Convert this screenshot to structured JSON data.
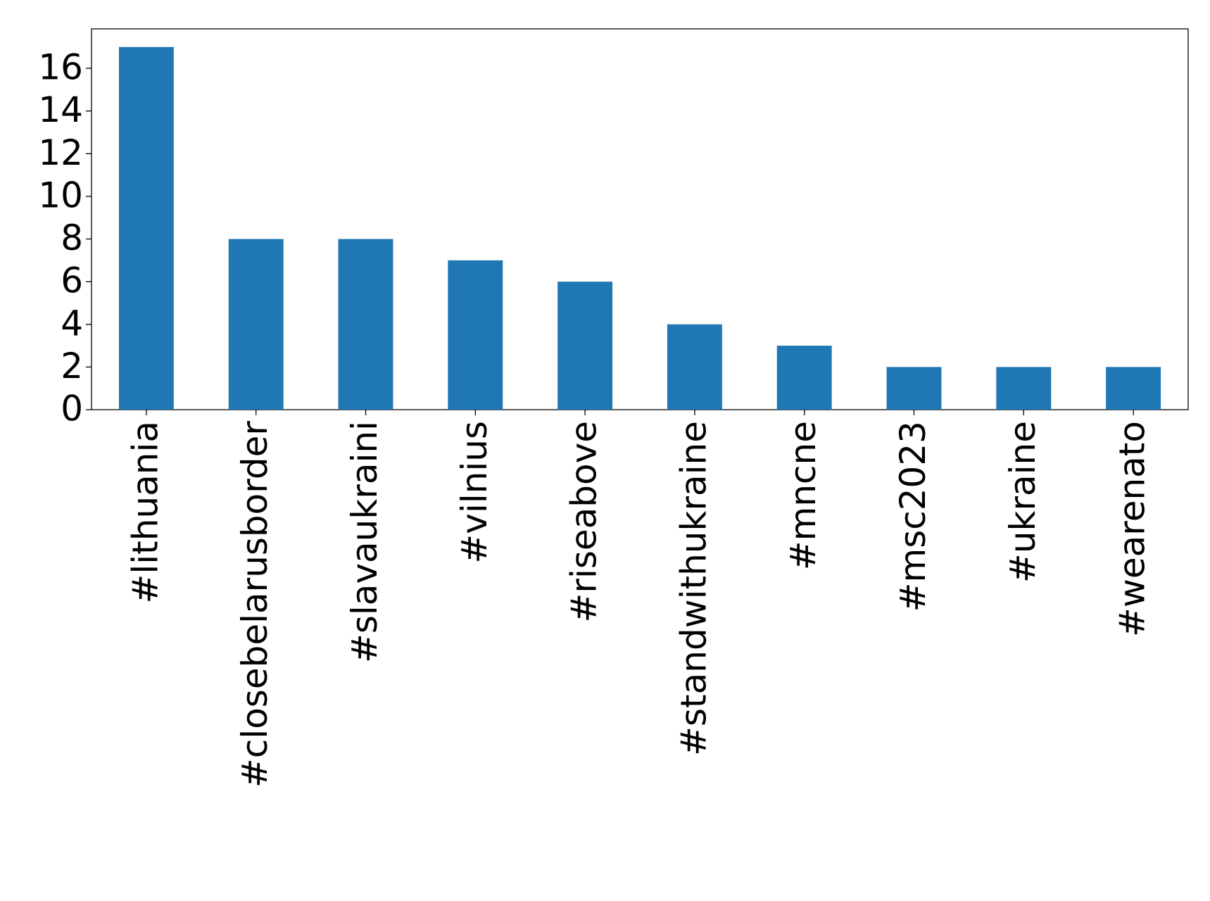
{
  "chart_data": {
    "type": "bar",
    "categories": [
      "#lithuania",
      "#closebelarusborder",
      "#slavaukraini",
      "#vilnius",
      "#riseabove",
      "#standwithukraine",
      "#mncne",
      "#msc2023",
      "#ukraine",
      "#wearenato"
    ],
    "values": [
      17,
      8,
      8,
      7,
      6,
      4,
      3,
      2,
      2,
      2
    ],
    "color": "#1f77b4",
    "ylim": [
      0,
      17.85
    ],
    "yticks": [
      0,
      2,
      4,
      6,
      8,
      10,
      12,
      14,
      16
    ],
    "grid": false
  }
}
